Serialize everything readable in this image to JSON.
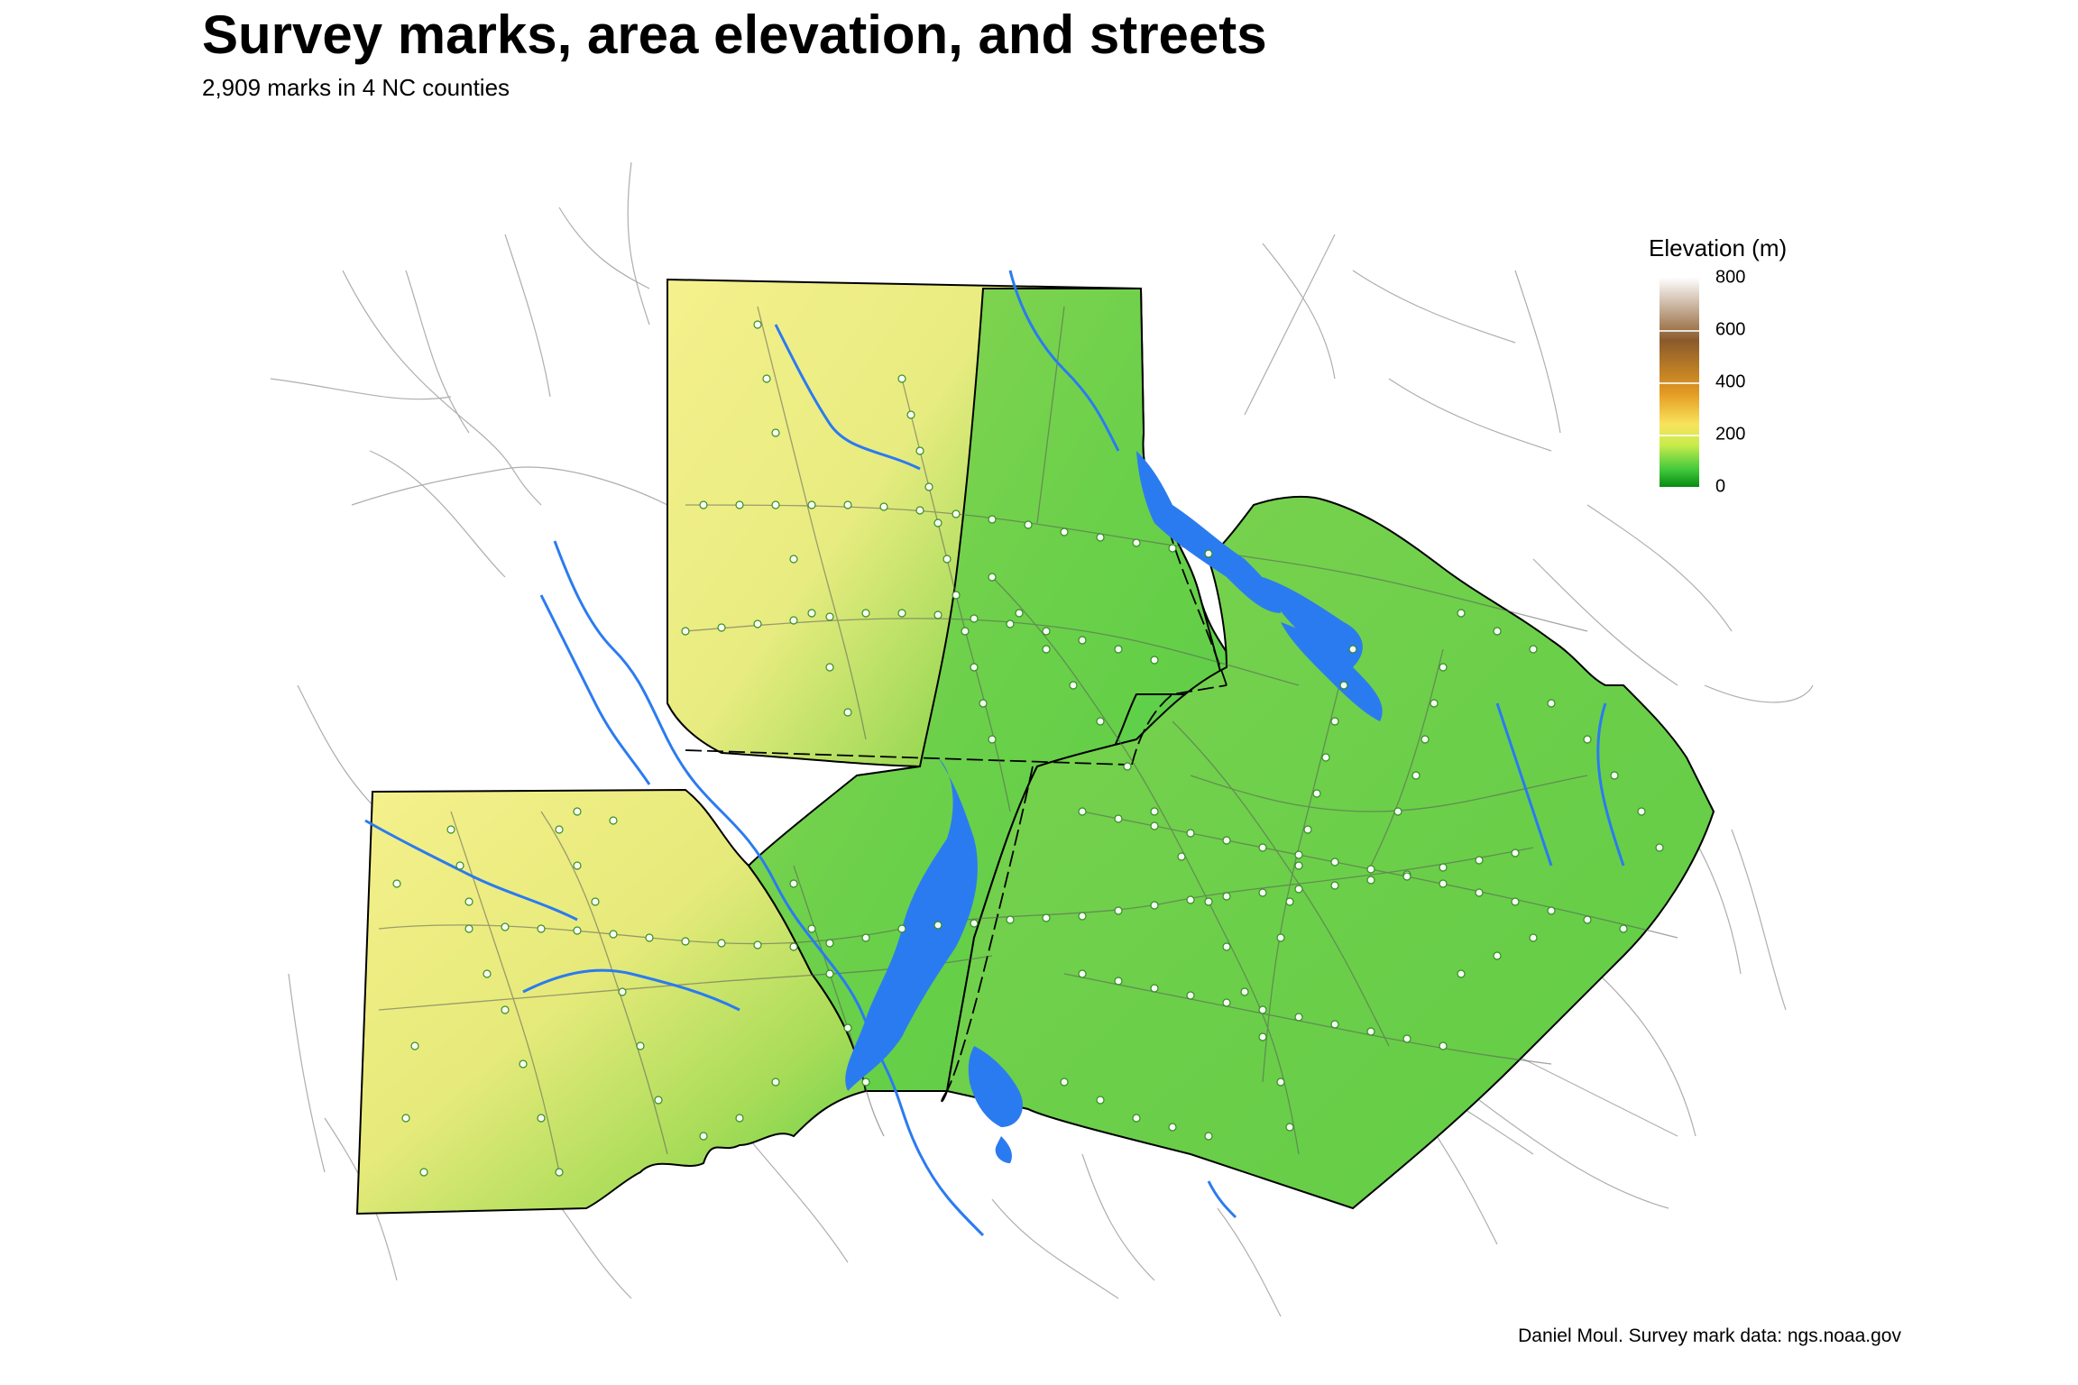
{
  "title": "Survey marks, area elevation, and streets",
  "subtitle": "2,909 marks in 4 NC counties",
  "caption": "Daniel Moul. Survey mark data: ngs.noaa.gov",
  "legend": {
    "title": "Elevation (m)",
    "ticks": [
      "800",
      "600",
      "400",
      "200",
      "0"
    ]
  },
  "colors": {
    "water": "#2b7bf0",
    "street": "#7a7a7a",
    "county_border": "#000000",
    "mark": "#ffffff",
    "elev_high": "#f4ef8c",
    "elev_mid": "#b6e05a",
    "elev_low": "#3fc83b"
  }
}
